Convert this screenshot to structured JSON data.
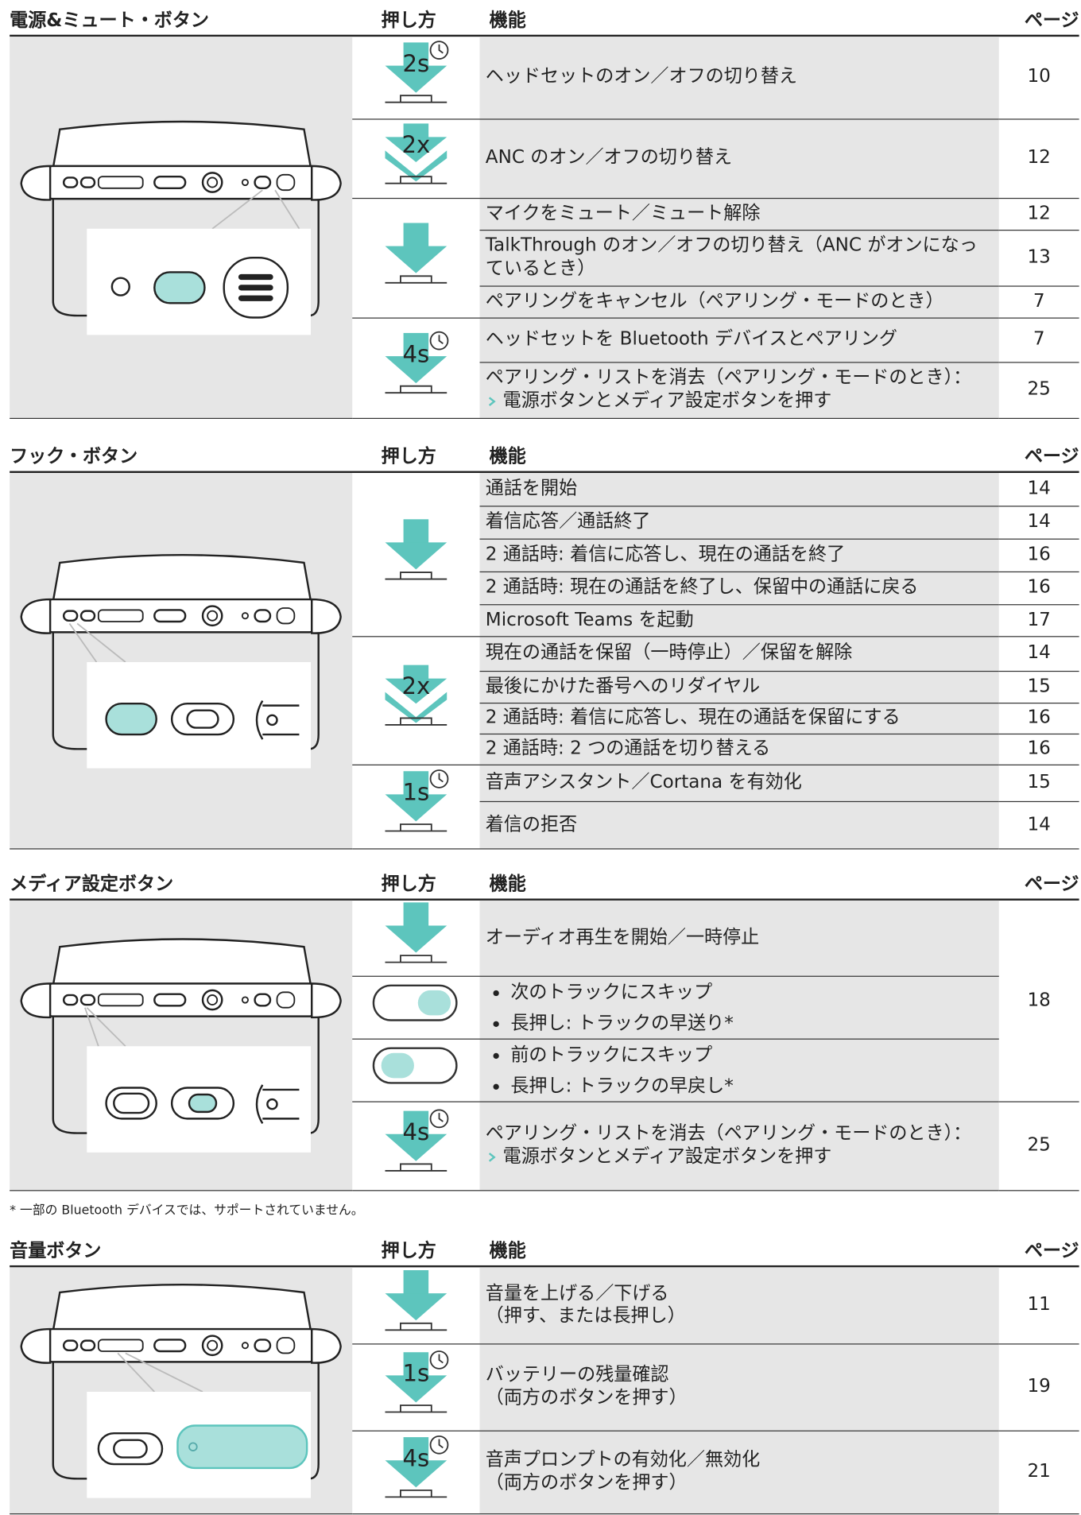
{
  "columns": [
    "押し方",
    "機能",
    "ページ"
  ],
  "sections": [
    {
      "title": "電源&ミュート・ボタン",
      "groups": [
        {
          "press": {
            "icon": "timed",
            "label": "2s"
          },
          "rows": [
            {
              "function": "ヘッドセットのオン／オフの切り替え",
              "page": 10
            }
          ]
        },
        {
          "press": {
            "icon": "double",
            "label": "2x"
          },
          "rows": [
            {
              "function": "ANC のオン／オフの切り替え",
              "page": 12
            }
          ]
        },
        {
          "press": {
            "icon": "push"
          },
          "rows": [
            {
              "function": "マイクをミュート／ミュート解除",
              "page": 12
            },
            {
              "function": "TalkThrough のオン／オフの切り替え（ANC がオンになっているとき）",
              "page": 13
            },
            {
              "function": "ペアリングをキャンセル（ペアリング・モードのとき）",
              "page": 7
            }
          ]
        },
        {
          "press": {
            "icon": "timed",
            "label": "4s"
          },
          "rows": [
            {
              "function": "ヘッドセットを Bluetooth デバイスとペアリング",
              "page": 7
            },
            {
              "function": "ペアリング・リストを消去（ペアリング・モードのとき）：",
              "step": "電源ボタンとメディア設定ボタンを押す",
              "page": 25
            }
          ]
        }
      ]
    },
    {
      "title": "フック・ボタン",
      "groups": [
        {
          "press": {
            "icon": "push"
          },
          "rows": [
            {
              "function": "通話を開始",
              "page": 14
            },
            {
              "function": "着信応答／通話終了",
              "page": 14
            },
            {
              "function": "2 通話時: 着信に応答し、現在の通話を終了",
              "page": 16
            },
            {
              "function": "2 通話時: 現在の通話を終了し、保留中の通話に戻る",
              "page": 16
            },
            {
              "function": "Microsoft Teams を起動",
              "page": 17
            }
          ]
        },
        {
          "press": {
            "icon": "double",
            "label": "2x"
          },
          "rows": [
            {
              "function": "現在の通話を保留（一時停止）／保留を解除",
              "page": 14
            },
            {
              "function": "最後にかけた番号へのリダイヤル",
              "page": 15
            },
            {
              "function": "2 通話時: 着信に応答し、現在の通話を保留にする",
              "page": 16
            },
            {
              "function": "2 通話時: 2 つの通話を切り替える",
              "page": 16
            }
          ]
        },
        {
          "press": {
            "icon": "timed",
            "label": "1s"
          },
          "rows": [
            {
              "function": "音声アシスタント／Cortana を有効化",
              "page": 15
            },
            {
              "function": "着信の拒否",
              "page": 14
            }
          ]
        }
      ]
    },
    {
      "title": "メディア設定ボタン",
      "groups": [
        {
          "press": {
            "icon": "push"
          },
          "rows": [
            {
              "function": "オーディオ再生を開始／一時停止",
              "page": 18
            }
          ]
        },
        {
          "press": {
            "icon": "slide-right"
          },
          "rows": [
            {
              "bullets": [
                "次のトラックにスキップ",
                "長押し: トラックの早送り*"
              ]
            }
          ]
        },
        {
          "press": {
            "icon": "slide-left"
          },
          "rows": [
            {
              "bullets": [
                "前のトラックにスキップ",
                "長押し: トラックの早戻し*"
              ]
            }
          ]
        },
        {
          "press": {
            "icon": "timed",
            "label": "4s"
          },
          "rows": [
            {
              "function": "ペアリング・リストを消去（ペアリング・モードのとき）：",
              "step": "電源ボタンとメディア設定ボタンを押す",
              "page": 25
            }
          ]
        }
      ],
      "footnote": "* 一部の Bluetooth デバイスでは、サポートされていません。"
    },
    {
      "title": "音量ボタン",
      "groups": [
        {
          "press": {
            "icon": "push"
          },
          "rows": [
            {
              "function": "音量を上げる／下げる",
              "note": "（押す、または長押し）",
              "page": 11
            }
          ]
        },
        {
          "press": {
            "icon": "timed",
            "label": "1s"
          },
          "rows": [
            {
              "function": "バッテリーの残量確認",
              "note": "（両方のボタンを押す）",
              "page": 19
            }
          ]
        },
        {
          "press": {
            "icon": "timed",
            "label": "4s"
          },
          "rows": [
            {
              "function": "音声プロンプトの有効化／無効化",
              "note": "（両方のボタンを押す）",
              "page": 21
            }
          ]
        }
      ]
    }
  ]
}
